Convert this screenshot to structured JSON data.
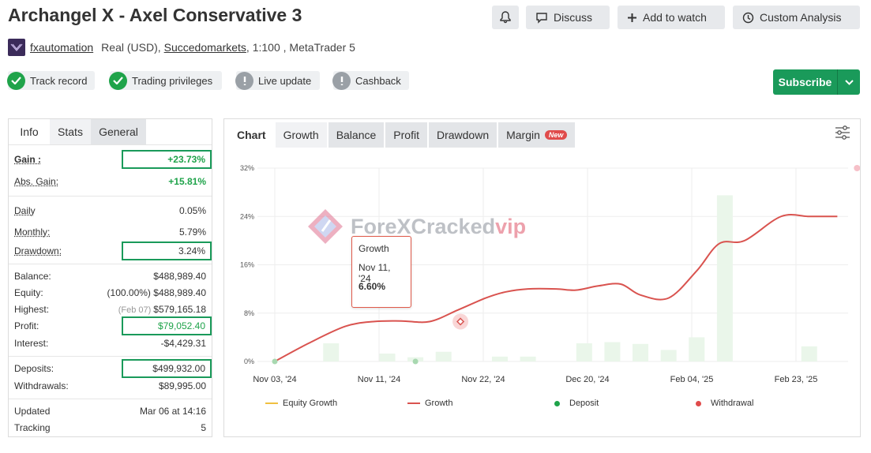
{
  "title": "Archangel X - Axel Conservative 3",
  "header_buttons": {
    "bell_label": "",
    "discuss": "Discuss",
    "add_to_watch": "Add to watch",
    "custom_analysis": "Custom Analysis"
  },
  "meta": {
    "author": "fxautomation",
    "account": "Real (USD),",
    "broker": "Succedomarkets",
    "rest": ", 1:100 , MetaTrader 5"
  },
  "badges": [
    {
      "label": "Track record",
      "status": "ok"
    },
    {
      "label": "Trading privileges",
      "status": "ok"
    },
    {
      "label": "Live update",
      "status": "warn"
    },
    {
      "label": "Cashback",
      "status": "warn"
    }
  ],
  "subscribe": {
    "label": "Subscribe"
  },
  "stats_tabs": [
    "Info",
    "Stats",
    "General"
  ],
  "stats": {
    "gain": {
      "label": "Gain :",
      "value": "+23.73%"
    },
    "abs_gain": {
      "label": "Abs. Gain:",
      "value": "+15.81%"
    },
    "daily": {
      "label": "Daily",
      "value": "0.05%"
    },
    "monthly": {
      "label": "Monthly:",
      "value": "5.79%"
    },
    "drawdown": {
      "label": "Drawdown:",
      "value": "3.24%"
    },
    "balance": {
      "label": "Balance:",
      "value": "$488,989.40"
    },
    "equity": {
      "label": "Equity:",
      "note": "(100.00%)",
      "value": "$488,989.40"
    },
    "highest": {
      "label": "Highest:",
      "note": "(Feb 07)",
      "value": "$579,165.18"
    },
    "profit": {
      "label": "Profit:",
      "value": "$79,052.40"
    },
    "interest": {
      "label": "Interest:",
      "value": "-$4,429.31"
    },
    "deposits": {
      "label": "Deposits:",
      "value": "$499,932.00"
    },
    "withdrawals": {
      "label": "Withdrawals:",
      "value": "$89,995.00"
    },
    "updated": {
      "label": "Updated",
      "value": "Mar 06 at 14:16"
    },
    "tracking": {
      "label": "Tracking",
      "value": "5"
    }
  },
  "chart_tabs": [
    "Chart",
    "Growth",
    "Balance",
    "Profit",
    "Drawdown",
    "Margin"
  ],
  "new_badge": "New",
  "watermark": {
    "main": "ForeXCracked",
    "accent": "vip"
  },
  "tooltip": {
    "title": "Growth",
    "date": "Nov 11, '24",
    "value": "6.60%"
  },
  "legend": {
    "equity_growth": "Equity Growth",
    "growth": "Growth",
    "deposit": "Deposit",
    "withdrawal": "Withdrawal"
  },
  "colors": {
    "accent_green": "#1a9a5a",
    "growth_line": "#d9534f",
    "equity_line": "#f0c040",
    "deposit": "#1fa34a",
    "withdrawal": "#e04b4b"
  },
  "chart_data": {
    "type": "line",
    "ylim": [
      0,
      32
    ],
    "yticks": [
      "0%",
      "8%",
      "16%",
      "24%",
      "32%"
    ],
    "xticks": [
      "Nov 03, '24",
      "Nov 11, '24",
      "Nov 22, '24",
      "Dec 20, '24",
      "Feb 04, '25",
      "Feb 23, '25"
    ],
    "series": [
      {
        "name": "Growth",
        "x": [
          0,
          1.2,
          2.5,
          3.5,
          4.5,
          5.5,
          6.5,
          7.5,
          8.2,
          9.0,
          10.0,
          10.7,
          11.5,
          12.3,
          13.0,
          14.0,
          15.0,
          15.8,
          16.7,
          18.0,
          19.0,
          20.0
        ],
        "values": [
          0,
          3.0,
          5.8,
          6.6,
          6.7,
          6.6,
          8.5,
          10.5,
          11.5,
          12.0,
          12.0,
          11.8,
          12.5,
          12.8,
          11.0,
          10.5,
          15.0,
          19.5,
          20.0,
          24.0,
          24.0,
          24.0
        ]
      },
      {
        "name": "Equity bars",
        "x": [
          1,
          2,
          3,
          4,
          5,
          6,
          7,
          8,
          9,
          10,
          11,
          12,
          13,
          14,
          15,
          16,
          17,
          18,
          19,
          20
        ],
        "values": [
          0,
          3.0,
          0,
          1.3,
          0.7,
          1.6,
          0,
          0.8,
          0.8,
          0,
          3.0,
          3.2,
          2.9,
          1.9,
          4.0,
          27.5,
          0,
          0,
          2.5,
          0
        ]
      }
    ],
    "deposit_points": [
      {
        "x": 0,
        "y": 0
      },
      {
        "x": 5,
        "y": 0
      }
    ],
    "withdrawal_points": [
      {
        "x": 20.7,
        "y": 32
      }
    ],
    "highlight_point": {
      "x": 6.6,
      "y": 6.6
    }
  }
}
